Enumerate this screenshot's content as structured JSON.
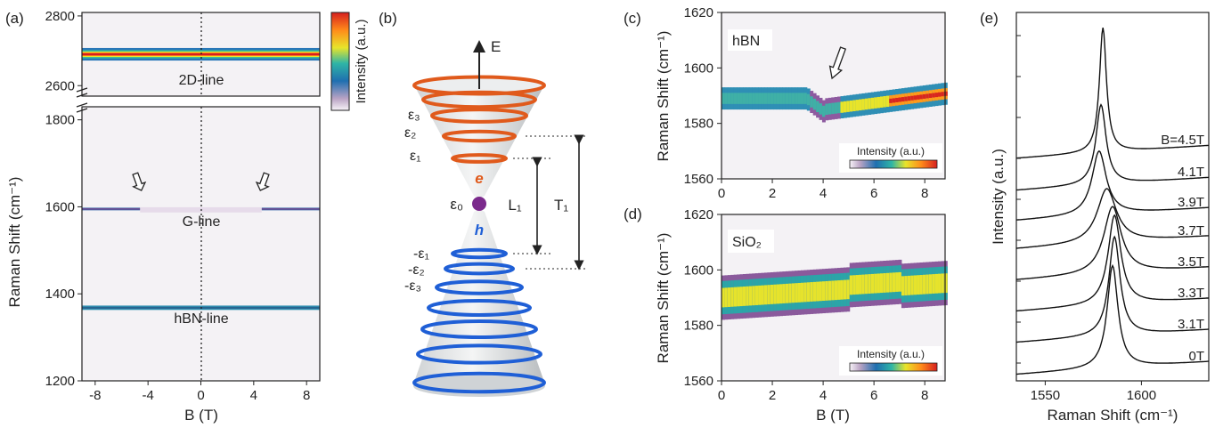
{
  "panel_labels": {
    "a": "(a)",
    "b": "(b)",
    "c": "(c)",
    "d": "(d)",
    "e": "(e)"
  },
  "colorbar": {
    "label": "Intensity (a.u.)"
  },
  "cone": {
    "energy_axis": "E",
    "electron": "e",
    "hole": "h",
    "levels_upper": [
      "ε₃",
      "ε₂",
      "ε₁"
    ],
    "level_zero": "ε₀",
    "levels_lower": [
      "-ε₁",
      "-ε₂",
      "-ε₃"
    ],
    "transition_L": "L₁",
    "transition_T": "T₁",
    "upper_color": "#e05a1c",
    "lower_color": "#1f5fd6",
    "zero_color": "#7b2a8c"
  },
  "chart_data": [
    {
      "id": "a",
      "type": "heatmap",
      "xlabel": "B (T)",
      "ylabel": "Raman Shift (cm⁻¹)",
      "xlim": [
        -9,
        9
      ],
      "xticks": [
        -8,
        -4,
        0,
        4,
        8
      ],
      "top_panel": {
        "ylim": [
          2570,
          2810
        ],
        "yticks": [
          2600,
          2800
        ],
        "lines": [
          {
            "name": "2D-line",
            "center": 2690
          }
        ]
      },
      "bottom_panel": {
        "ylim": [
          1200,
          1830
        ],
        "yticks": [
          1200,
          1400,
          1600,
          1800
        ],
        "lines": [
          {
            "name": "G-line",
            "center": 1595
          },
          {
            "name": "hBN-line",
            "center": 1368
          }
        ]
      },
      "annotations": [
        {
          "type": "arrow",
          "x": -4.5
        },
        {
          "type": "arrow",
          "x": 4.5
        }
      ],
      "guide": {
        "x": 0,
        "style": "dotted"
      }
    },
    {
      "id": "c",
      "type": "heatmap",
      "label": "hBN",
      "ylabel": "Raman Shift (cm⁻¹)",
      "xlim": [
        0,
        8.8
      ],
      "ylim": [
        1560,
        1620
      ],
      "xticks": [
        0,
        2,
        4,
        6,
        8
      ],
      "yticks": [
        1560,
        1580,
        1600,
        1620
      ],
      "colorbar_label": "Intensity (a.u.)",
      "annotations": [
        {
          "type": "arrow",
          "x": 4.0
        }
      ]
    },
    {
      "id": "d",
      "type": "heatmap",
      "label": "SiO₂",
      "xlabel": "B (T)",
      "ylabel": "Raman Shift (cm⁻¹)",
      "xlim": [
        0,
        8.8
      ],
      "ylim": [
        1560,
        1620
      ],
      "xticks": [
        0,
        2,
        4,
        6,
        8
      ],
      "yticks": [
        1560,
        1580,
        1600,
        1620
      ],
      "colorbar_label": "Intensity (a.u.)"
    },
    {
      "id": "e",
      "type": "line",
      "xlabel": "Raman Shift (cm⁻¹)",
      "ylabel": "Intensity (a.u.)",
      "xlim": [
        1535,
        1635
      ],
      "xticks": [
        1550,
        1600
      ],
      "series": [
        {
          "name": "B=4.5T",
          "peak": 1580,
          "width": 2.2,
          "amp": 3.9
        },
        {
          "name": "4.1T",
          "peak": 1579,
          "width": 3.2,
          "amp": 2.5
        },
        {
          "name": "3.9T",
          "peak": 1578,
          "width": 4.5,
          "amp": 2.0
        },
        {
          "name": "3.7T",
          "peak": 1582,
          "width": 6.0,
          "amp": 1.7
        },
        {
          "name": "3.5T",
          "peak": 1585,
          "width": 5.5,
          "amp": 2.1
        },
        {
          "name": "3.3T",
          "peak": 1586,
          "width": 4.0,
          "amp": 2.8
        },
        {
          "name": "3.1T",
          "peak": 1586,
          "width": 3.5,
          "amp": 3.1
        },
        {
          "name": "0T",
          "peak": 1585,
          "width": 3.4,
          "amp": 3.2
        }
      ]
    }
  ]
}
